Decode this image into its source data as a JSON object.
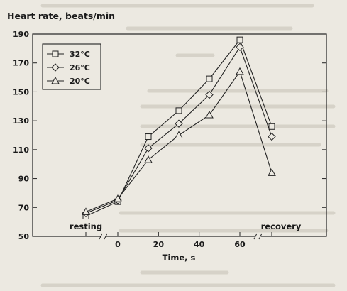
{
  "chart_data": {
    "type": "line",
    "title": "",
    "ylabel": "Heart rate, beats/min",
    "xlabel": "Time, s",
    "ylim": [
      50,
      190
    ],
    "yticks": [
      50,
      70,
      90,
      110,
      130,
      150,
      170,
      190
    ],
    "x_categories": [
      "resting",
      "0",
      "15",
      "30",
      "45",
      "60",
      "recovery"
    ],
    "xtick_labels": [
      "0",
      "20",
      "40",
      "60"
    ],
    "category_labels": {
      "resting": "resting",
      "recovery": "recovery"
    },
    "legend_position": "top-left",
    "series": [
      {
        "name": "32°C",
        "marker": "square",
        "values": [
          64,
          74,
          119,
          137,
          159,
          186,
          126
        ]
      },
      {
        "name": "26°C",
        "marker": "diamond",
        "values": [
          66,
          75,
          111,
          128,
          148,
          181,
          119
        ]
      },
      {
        "name": "20°C",
        "marker": "triangle",
        "values": [
          67,
          76,
          103,
          120,
          134,
          164,
          94
        ]
      }
    ]
  }
}
